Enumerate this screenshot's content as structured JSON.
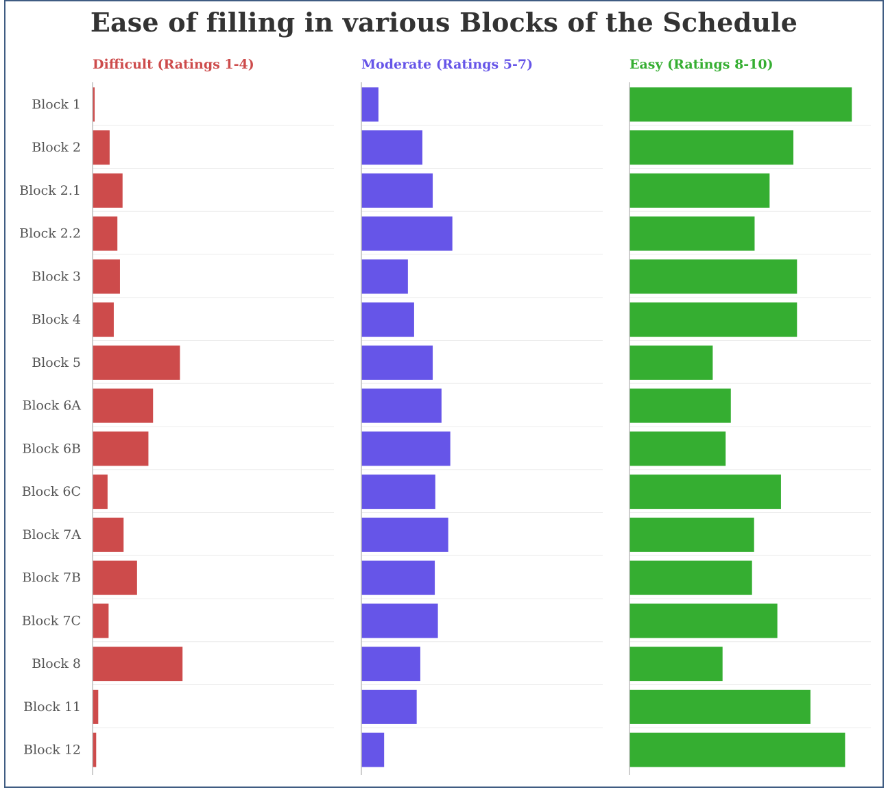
{
  "title": "Ease of filling in various Blocks of the Schedule",
  "chart_data": {
    "type": "bar",
    "orientation": "horizontal",
    "layout": "small-multiples",
    "title": "Ease of filling in various Blocks of the Schedule",
    "categories": [
      "Block 1",
      "Block 2",
      "Block 2.1",
      "Block 2.2",
      "Block 3",
      "Block 4",
      "Block 5",
      "Block 6A",
      "Block 6B",
      "Block 6C",
      "Block 7A",
      "Block 7B",
      "Block 7C",
      "Block 8",
      "Block 11",
      "Block 12"
    ],
    "grid": "horizontal row separators",
    "series": [
      {
        "name": "Difficult (Ratings 1-4)",
        "color": "#cd4b4b",
        "values": [
          0.4,
          3.3,
          5.8,
          4.8,
          5.3,
          4.1,
          16.9,
          11.7,
          10.8,
          2.9,
          6.0,
          8.6,
          3.1,
          17.4,
          1.1,
          0.7
        ]
      },
      {
        "name": "Moderate (Ratings 5-7)",
        "color": "#6655e8",
        "values": [
          3.3,
          11.8,
          13.8,
          17.6,
          9.0,
          10.2,
          13.8,
          15.5,
          17.2,
          14.3,
          16.8,
          14.2,
          14.8,
          11.4,
          10.7,
          4.4
        ]
      },
      {
        "name": "Easy (Ratings 8-10)",
        "color": "#35ae31",
        "values": [
          43.0,
          31.7,
          27.1,
          24.2,
          32.4,
          32.4,
          16.1,
          19.6,
          18.6,
          29.3,
          24.1,
          23.7,
          28.6,
          18.0,
          35.0,
          41.7
        ]
      }
    ]
  }
}
